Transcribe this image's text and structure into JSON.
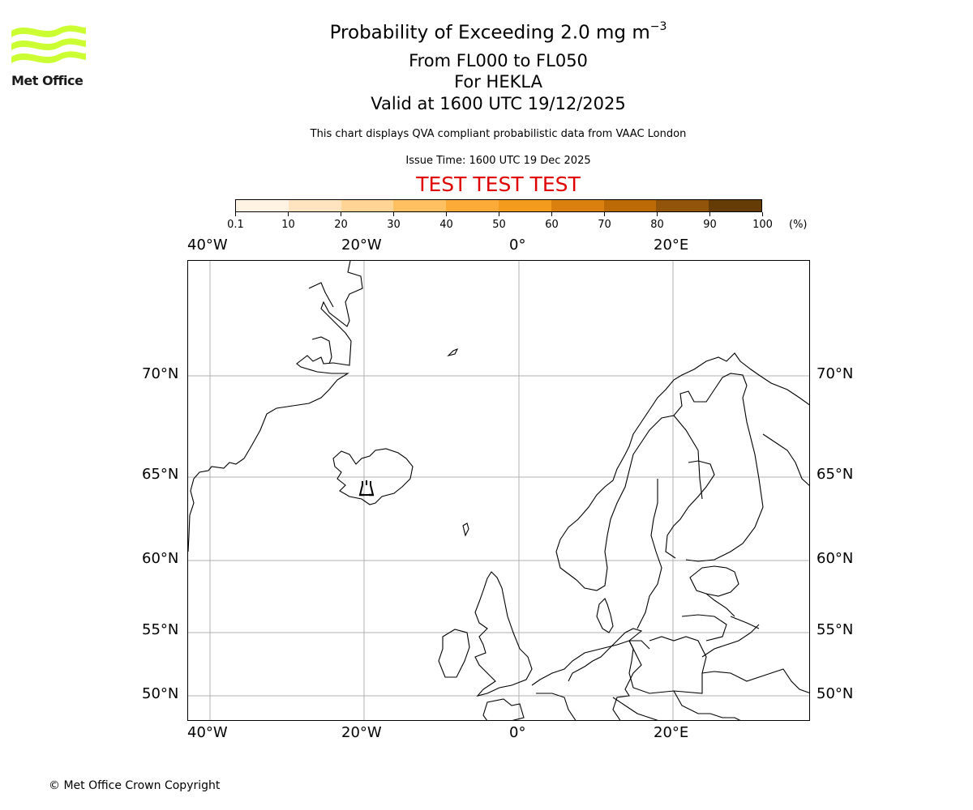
{
  "logo": {
    "text": "Met Office",
    "color": "#ccff33"
  },
  "title": {
    "line1_prefix": "Probability of Exceeding 2.0 mg m",
    "line1_superscript": "−3",
    "line2": "From FL000 to FL050",
    "line3": "For HEKLA",
    "line4": "Valid at 1600 UTC 19/12/2025"
  },
  "subtitle": "This chart displays QVA compliant probabilistic data from VAAC London",
  "issue_time": "Issue Time: 1600 UTC 19 Dec 2025",
  "test_banner": "TEST TEST TEST",
  "colorbar": {
    "unit": "(%)",
    "ticks": [
      "0.1",
      "10",
      "20",
      "30",
      "40",
      "50",
      "60",
      "70",
      "80",
      "90",
      "100"
    ],
    "colors": [
      "#fff4e3",
      "#ffe4bf",
      "#ffd495",
      "#ffc062",
      "#fdab38",
      "#f39b1c",
      "#d9800f",
      "#bb6a06",
      "#92530a",
      "#663c06"
    ]
  },
  "map": {
    "x_labels": [
      "40°W",
      "20°W",
      "0°",
      "20°E"
    ],
    "y_labels": [
      "70°N",
      "65°N",
      "60°N",
      "55°N",
      "50°N"
    ],
    "volcano": {
      "name": "HEKLA",
      "icon": "volcano-icon"
    }
  },
  "footer": "© Met Office Crown Copyright",
  "chart_data": {
    "type": "heatmap",
    "title": "Probability of Exceeding 2.0 mg m−3 From FL000 to FL050 For HEKLA Valid at 1600 UTC 19/12/2025",
    "subtitle": "This chart displays QVA compliant probabilistic data from VAAC London",
    "issue_time": "Issue Time: 1600 UTC 19 Dec 2025",
    "colorbar_bins": [
      0.1,
      10,
      20,
      30,
      40,
      50,
      60,
      70,
      80,
      90,
      100
    ],
    "colorbar_unit": "%",
    "x_ticks": [
      "40°W",
      "20°W",
      "0°",
      "20°E"
    ],
    "y_ticks": [
      "70°N",
      "65°N",
      "60°N",
      "55°N",
      "50°N"
    ],
    "extent": {
      "lon": [
        -43,
        38
      ],
      "lat": [
        48.5,
        74
      ]
    },
    "grid": true,
    "data_values": [],
    "annotations": [
      "Volcano marker at Hekla, Iceland (~19.7°W, 64.0°N)",
      "TEST TEST TEST"
    ]
  }
}
